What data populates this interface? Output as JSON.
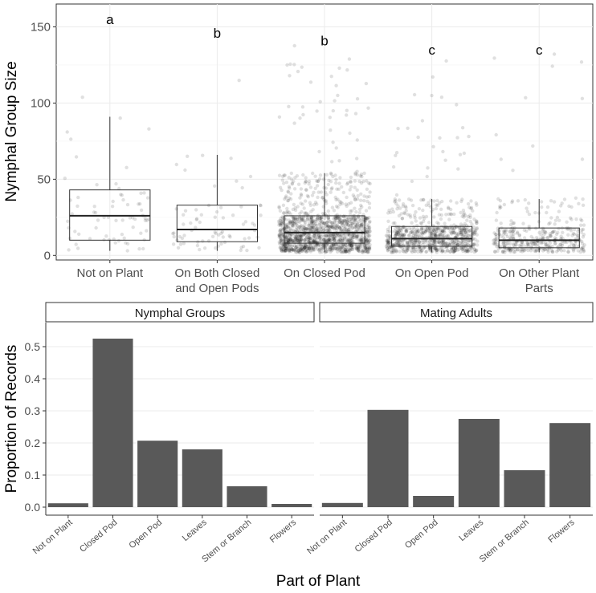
{
  "chart_data": [
    {
      "type": "box",
      "ylabel": "Nymphal Group Size",
      "ylim": [
        -3,
        165
      ],
      "yticks": [
        0,
        50,
        100,
        150
      ],
      "categories": [
        [
          "Not on Plant"
        ],
        [
          "On Both Closed",
          "and Open Pods"
        ],
        [
          "On Closed Pod"
        ],
        [
          "On Open Pod"
        ],
        [
          "On Other Plant",
          "Parts"
        ]
      ],
      "boxes": [
        {
          "whisker_low": 3,
          "q1": 10,
          "median": 26,
          "q3": 43,
          "whisker_high": 91,
          "letter": "a",
          "letter_y": 155
        },
        {
          "whisker_low": 3,
          "q1": 9,
          "median": 17,
          "q3": 33,
          "whisker_high": 66,
          "letter": "b",
          "letter_y": 146
        },
        {
          "whisker_low": 2,
          "q1": 8,
          "median": 15,
          "q3": 26,
          "whisker_high": 54,
          "letter": "b",
          "letter_y": 141
        },
        {
          "whisker_low": 2,
          "q1": 6,
          "median": 11,
          "q3": 19,
          "whisker_high": 37,
          "letter": "c",
          "letter_y": 135
        },
        {
          "whisker_low": 2,
          "q1": 5,
          "median": 10,
          "q3": 18,
          "whisker_high": 37,
          "letter": "c",
          "letter_y": 135
        }
      ],
      "jitter_counts": [
        70,
        75,
        1400,
        800,
        380
      ]
    },
    {
      "type": "bar",
      "ylabel": "Proportion of Records",
      "xlabel": "Part of Plant",
      "ylim": [
        -0.025,
        0.575
      ],
      "yticks": [
        0.0,
        0.1,
        0.2,
        0.3,
        0.4,
        0.5
      ],
      "ytick_labels": [
        "0.0",
        "0.1",
        "0.2",
        "0.3",
        "0.4",
        "0.5"
      ],
      "categories": [
        "Not on Plant",
        "Closed Pod",
        "Open Pod",
        "Leaves",
        "Stem or Branch",
        "Flowers"
      ],
      "panels": [
        {
          "strip": "Nymphal Groups",
          "values": [
            0.012,
            0.525,
            0.207,
            0.18,
            0.065,
            0.01
          ]
        },
        {
          "strip": "Mating Adults",
          "values": [
            0.013,
            0.303,
            0.035,
            0.275,
            0.115,
            0.262
          ]
        }
      ]
    }
  ]
}
